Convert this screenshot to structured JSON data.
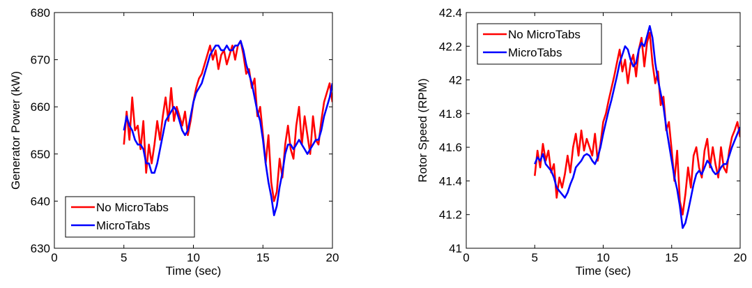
{
  "chart_data": [
    {
      "type": "line",
      "xlabel": "Time (sec)",
      "ylabel": "Generator Power (kW)",
      "xlim": [
        0,
        20
      ],
      "ylim": [
        630,
        680
      ],
      "xticks": [
        "0",
        "5",
        "10",
        "15",
        "20"
      ],
      "yticks": [
        "630",
        "640",
        "650",
        "660",
        "670",
        "680"
      ],
      "grid": false,
      "legend_position": "bottom-left",
      "series": [
        {
          "name": "No MicroTabs",
          "color": "#ff0000",
          "x": [
            5.0,
            5.2,
            5.4,
            5.6,
            5.8,
            6.0,
            6.2,
            6.4,
            6.6,
            6.8,
            7.0,
            7.2,
            7.4,
            7.6,
            7.8,
            8.0,
            8.2,
            8.4,
            8.6,
            8.8,
            9.0,
            9.2,
            9.4,
            9.6,
            9.8,
            10.0,
            10.2,
            10.4,
            10.6,
            10.8,
            11.0,
            11.2,
            11.4,
            11.6,
            11.8,
            12.0,
            12.2,
            12.4,
            12.6,
            12.8,
            13.0,
            13.2,
            13.4,
            13.6,
            13.8,
            14.0,
            14.2,
            14.4,
            14.6,
            14.8,
            15.0,
            15.2,
            15.4,
            15.6,
            15.8,
            16.0,
            16.2,
            16.4,
            16.6,
            16.8,
            17.0,
            17.2,
            17.4,
            17.6,
            17.8,
            18.0,
            18.2,
            18.4,
            18.6,
            18.8,
            19.0,
            19.2,
            19.4,
            19.6,
            19.8,
            20.0
          ],
          "values": [
            652,
            659,
            653,
            662,
            655,
            656,
            651,
            657,
            646,
            652,
            648,
            652,
            657,
            653,
            658,
            662,
            657,
            664,
            657,
            660,
            658,
            656,
            659,
            654,
            657,
            661,
            664,
            666,
            667,
            669,
            671,
            673,
            670,
            672,
            668,
            671,
            672,
            669,
            671,
            673,
            670,
            673,
            674,
            671,
            667,
            668,
            664,
            666,
            658,
            660,
            654,
            648,
            654,
            644,
            640,
            642,
            649,
            645,
            652,
            656,
            651,
            649,
            656,
            660,
            652,
            658,
            654,
            650,
            658,
            653,
            652,
            657,
            661,
            663,
            665,
            661
          ]
        },
        {
          "name": "MicroTabs",
          "color": "#0000ff",
          "x": [
            5.0,
            5.2,
            5.4,
            5.6,
            5.8,
            6.0,
            6.2,
            6.4,
            6.6,
            6.8,
            7.0,
            7.2,
            7.4,
            7.6,
            7.8,
            8.0,
            8.2,
            8.4,
            8.6,
            8.8,
            9.0,
            9.2,
            9.4,
            9.6,
            9.8,
            10.0,
            10.2,
            10.4,
            10.6,
            10.8,
            11.0,
            11.2,
            11.4,
            11.6,
            11.8,
            12.0,
            12.2,
            12.4,
            12.6,
            12.8,
            13.0,
            13.2,
            13.4,
            13.6,
            13.8,
            14.0,
            14.2,
            14.4,
            14.6,
            14.8,
            15.0,
            15.2,
            15.4,
            15.6,
            15.8,
            16.0,
            16.2,
            16.4,
            16.6,
            16.8,
            17.0,
            17.2,
            17.4,
            17.6,
            17.8,
            18.0,
            18.2,
            18.4,
            18.6,
            18.8,
            19.0,
            19.2,
            19.4,
            19.6,
            19.8,
            20.0
          ],
          "values": [
            655,
            658,
            656,
            655,
            653,
            652,
            652,
            651,
            648,
            648,
            646,
            646,
            648,
            651,
            654,
            657,
            658,
            659,
            660,
            659,
            657,
            655,
            654,
            655,
            658,
            661,
            663,
            664,
            665,
            667,
            669,
            671,
            672,
            673,
            673,
            672,
            672,
            673,
            672,
            672,
            673,
            673,
            674,
            672,
            669,
            667,
            665,
            662,
            659,
            657,
            653,
            648,
            644,
            641,
            637,
            639,
            643,
            646,
            650,
            652,
            652,
            651,
            652,
            653,
            652,
            651,
            650,
            651,
            652,
            653,
            653,
            655,
            658,
            660,
            662,
            665
          ]
        }
      ]
    },
    {
      "type": "line",
      "xlabel": "Time (sec)",
      "ylabel": "Rotor Speed (RPM)",
      "xlim": [
        0,
        20
      ],
      "ylim": [
        41,
        42.4
      ],
      "xticks": [
        "0",
        "5",
        "10",
        "15",
        "20"
      ],
      "yticks": [
        "41",
        "41.2",
        "41.4",
        "41.6",
        "41.8",
        "42",
        "42.2",
        "42.4"
      ],
      "grid": false,
      "legend_position": "top-left",
      "series": [
        {
          "name": "No MicroTabs",
          "color": "#ff0000",
          "x": [
            5.0,
            5.2,
            5.4,
            5.6,
            5.8,
            6.0,
            6.2,
            6.4,
            6.6,
            6.8,
            7.0,
            7.2,
            7.4,
            7.6,
            7.8,
            8.0,
            8.2,
            8.4,
            8.6,
            8.8,
            9.0,
            9.2,
            9.4,
            9.6,
            9.8,
            10.0,
            10.2,
            10.4,
            10.6,
            10.8,
            11.0,
            11.2,
            11.4,
            11.6,
            11.8,
            12.0,
            12.2,
            12.4,
            12.6,
            12.8,
            13.0,
            13.2,
            13.4,
            13.6,
            13.8,
            14.0,
            14.2,
            14.4,
            14.6,
            14.8,
            15.0,
            15.2,
            15.4,
            15.6,
            15.8,
            16.0,
            16.2,
            16.4,
            16.6,
            16.8,
            17.0,
            17.2,
            17.4,
            17.6,
            17.8,
            18.0,
            18.2,
            18.4,
            18.6,
            18.8,
            19.0,
            19.2,
            19.4,
            19.6,
            19.8,
            20.0
          ],
          "values": [
            41.43,
            41.58,
            41.48,
            41.62,
            41.52,
            41.58,
            41.45,
            41.5,
            41.3,
            41.42,
            41.36,
            41.44,
            41.55,
            41.45,
            41.6,
            41.68,
            41.55,
            41.7,
            41.58,
            41.65,
            41.6,
            41.55,
            41.68,
            41.52,
            41.62,
            41.75,
            41.8,
            41.88,
            41.95,
            42.02,
            42.1,
            42.18,
            42.05,
            42.12,
            41.98,
            42.1,
            42.15,
            42.02,
            42.18,
            42.25,
            42.08,
            42.22,
            42.28,
            42.1,
            41.98,
            42.05,
            41.85,
            41.9,
            41.7,
            41.75,
            41.58,
            41.4,
            41.58,
            41.28,
            41.2,
            41.32,
            41.48,
            41.36,
            41.55,
            41.6,
            41.48,
            41.42,
            41.58,
            41.65,
            41.48,
            41.6,
            41.5,
            41.42,
            41.6,
            41.48,
            41.45,
            41.58,
            41.66,
            41.7,
            41.75,
            41.66
          ]
        },
        {
          "name": "MicroTabs",
          "color": "#0000ff",
          "x": [
            5.0,
            5.2,
            5.4,
            5.6,
            5.8,
            6.0,
            6.2,
            6.4,
            6.6,
            6.8,
            7.0,
            7.2,
            7.4,
            7.6,
            7.8,
            8.0,
            8.2,
            8.4,
            8.6,
            8.8,
            9.0,
            9.2,
            9.4,
            9.6,
            9.8,
            10.0,
            10.2,
            10.4,
            10.6,
            10.8,
            11.0,
            11.2,
            11.4,
            11.6,
            11.8,
            12.0,
            12.2,
            12.4,
            12.6,
            12.8,
            13.0,
            13.2,
            13.4,
            13.6,
            13.8,
            14.0,
            14.2,
            14.4,
            14.6,
            14.8,
            15.0,
            15.2,
            15.4,
            15.6,
            15.8,
            16.0,
            16.2,
            16.4,
            16.6,
            16.8,
            17.0,
            17.2,
            17.4,
            17.6,
            17.8,
            18.0,
            18.2,
            18.4,
            18.6,
            18.8,
            19.0,
            19.2,
            19.4,
            19.6,
            19.8,
            20.0
          ],
          "values": [
            41.5,
            41.54,
            41.52,
            41.56,
            41.5,
            41.48,
            41.46,
            41.42,
            41.36,
            41.34,
            41.32,
            41.3,
            41.33,
            41.38,
            41.42,
            41.48,
            41.5,
            41.52,
            41.55,
            41.56,
            41.55,
            41.52,
            41.5,
            41.54,
            41.6,
            41.68,
            41.75,
            41.82,
            41.88,
            41.95,
            42.02,
            42.1,
            42.15,
            42.2,
            42.18,
            42.12,
            42.08,
            42.1,
            42.18,
            42.22,
            42.2,
            42.26,
            42.32,
            42.25,
            42.1,
            42.0,
            41.92,
            41.84,
            41.72,
            41.62,
            41.52,
            41.42,
            41.35,
            41.25,
            41.12,
            41.15,
            41.22,
            41.3,
            41.38,
            41.44,
            41.46,
            41.44,
            41.48,
            41.52,
            41.5,
            41.46,
            41.44,
            41.45,
            41.48,
            41.5,
            41.5,
            41.55,
            41.6,
            41.64,
            41.68,
            41.72
          ]
        }
      ]
    }
  ]
}
